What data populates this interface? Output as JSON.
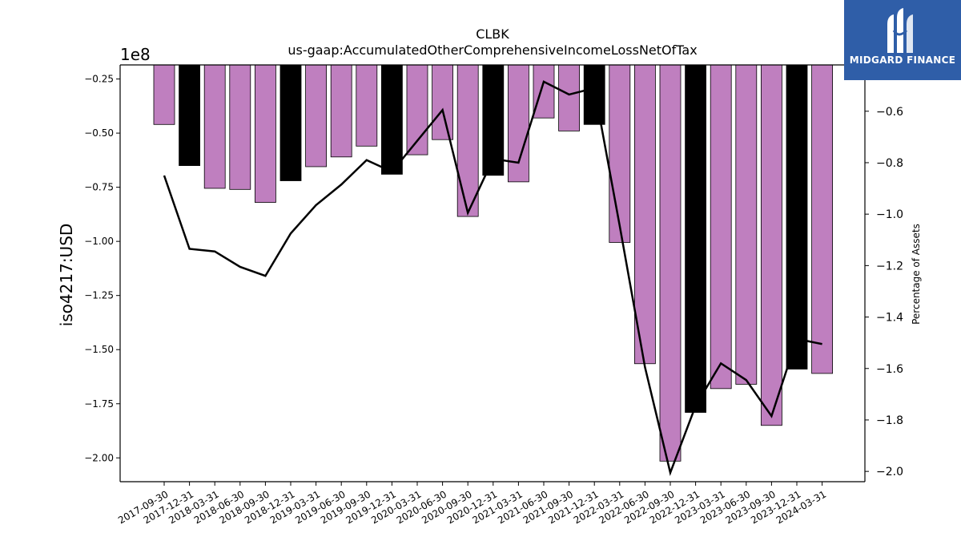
{
  "chart_data": {
    "type": "bar",
    "title": "CLBK",
    "subtitle": "us-gaap:AccumulatedOtherComprehensiveIncomeLossNetOfTax",
    "ylabel": "iso4217:USD",
    "y2label": "Percentage of Assets",
    "y_offset_label": "1e8",
    "categories": [
      "2017-09-30",
      "2017-12-31",
      "2018-03-31",
      "2018-06-30",
      "2018-09-30",
      "2018-12-31",
      "2019-03-31",
      "2019-06-30",
      "2019-09-30",
      "2019-12-31",
      "2020-03-31",
      "2020-06-30",
      "2020-09-30",
      "2020-12-31",
      "2021-03-31",
      "2021-06-30",
      "2021-09-30",
      "2021-12-31",
      "2022-03-31",
      "2022-06-30",
      "2022-09-30",
      "2022-12-31",
      "2023-03-31",
      "2023-06-30",
      "2023-09-30",
      "2023-12-31",
      "2024-03-31"
    ],
    "bar_colors": [
      "#bf7fbf",
      "#000000",
      "#bf7fbf",
      "#bf7fbf",
      "#bf7fbf",
      "#000000",
      "#bf7fbf",
      "#bf7fbf",
      "#bf7fbf",
      "#000000",
      "#bf7fbf",
      "#bf7fbf",
      "#bf7fbf",
      "#000000",
      "#bf7fbf",
      "#bf7fbf",
      "#bf7fbf",
      "#000000",
      "#bf7fbf",
      "#bf7fbf",
      "#bf7fbf",
      "#000000",
      "#bf7fbf",
      "#bf7fbf",
      "#bf7fbf",
      "#000000",
      "#bf7fbf"
    ],
    "series": [
      {
        "values": [
          -0.46,
          -0.65,
          -0.755,
          -0.76,
          -0.82,
          -0.72,
          -0.655,
          -0.61,
          -0.56,
          -0.69,
          -0.6,
          -0.53,
          -0.885,
          -0.695,
          -0.725,
          -0.43,
          -0.49,
          -0.46,
          -1.005,
          -1.565,
          -2.015,
          -1.79,
          -1.68,
          -1.66,
          -1.85,
          -1.59,
          -1.61
        ],
        "axis": "left"
      },
      {
        "values": [
          -0.85,
          -1.135,
          -1.145,
          -1.205,
          -1.24,
          -1.075,
          -0.965,
          -0.885,
          -0.79,
          -0.835,
          -0.715,
          -0.595,
          -0.995,
          -0.785,
          -0.8,
          -0.485,
          -0.535,
          -0.51,
          -1.045,
          -1.595,
          -2.005,
          -1.745,
          -1.58,
          -1.645,
          -1.785,
          -1.485,
          -1.505
        ],
        "axis": "right",
        "style": "line"
      }
    ],
    "ylim": [
      -2.11,
      -0.185
    ],
    "y2lim": [
      -2.04,
      -0.42
    ],
    "yticks": [
      "−0.25",
      "−0.50",
      "−0.75",
      "−1.00",
      "−1.25",
      "−1.50",
      "−1.75",
      "−2.00"
    ],
    "yticks_values": [
      -0.25,
      -0.5,
      -0.75,
      -1.0,
      -1.25,
      -1.5,
      -1.75,
      -2.0
    ],
    "y2ticks": [
      "−0.6",
      "−0.8",
      "−1.0",
      "−1.2",
      "−1.4",
      "−1.6",
      "−1.8",
      "−2.0"
    ],
    "y2ticks_values": [
      -0.6,
      -0.8,
      -1.0,
      -1.2,
      -1.4,
      -1.6,
      -1.8,
      -2.0
    ],
    "grid": false,
    "logo_text": "MIDGARD FINANCE"
  }
}
